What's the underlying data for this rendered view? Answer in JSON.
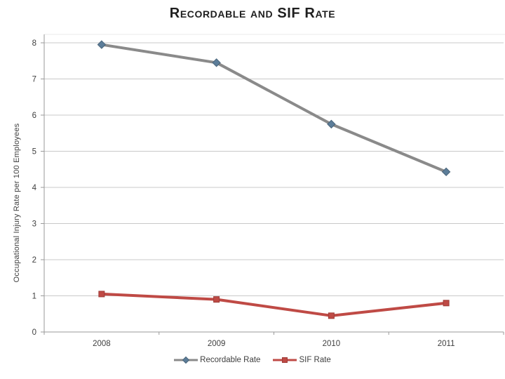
{
  "page": {
    "type": "presentation-slide",
    "background_color": "#ffffff"
  },
  "chart_data": {
    "type": "line",
    "title": "Recordable and SIF Rate",
    "xlabel": "",
    "ylabel": "Occupational Injury Rate per 100 Employees",
    "categories": [
      "2008",
      "2009",
      "2010",
      "2011"
    ],
    "series": [
      {
        "name": "Recordable Rate",
        "values": [
          7.95,
          7.45,
          5.75,
          4.43
        ],
        "color": "#8a8a8a",
        "marker": "diamond",
        "marker_color": "#5c7d99",
        "marker_border": "#49647a"
      },
      {
        "name": "SIF Rate",
        "values": [
          1.05,
          0.9,
          0.45,
          0.8
        ],
        "color": "#bf4a45",
        "marker": "square",
        "marker_color": "#bf4a45",
        "marker_border": "#9e3c38"
      }
    ],
    "ylim": [
      0,
      8
    ],
    "ytick_step": 1,
    "yticks": [
      "0",
      "1",
      "2",
      "3",
      "4",
      "5",
      "6",
      "7",
      "8"
    ],
    "grid": true,
    "legend_position": "bottom",
    "colors": {
      "grid": "#c9c9c9",
      "axis": "#9a9a9a",
      "tick_text": "#3f3f3f",
      "title_text": "#1f1f1f"
    }
  }
}
